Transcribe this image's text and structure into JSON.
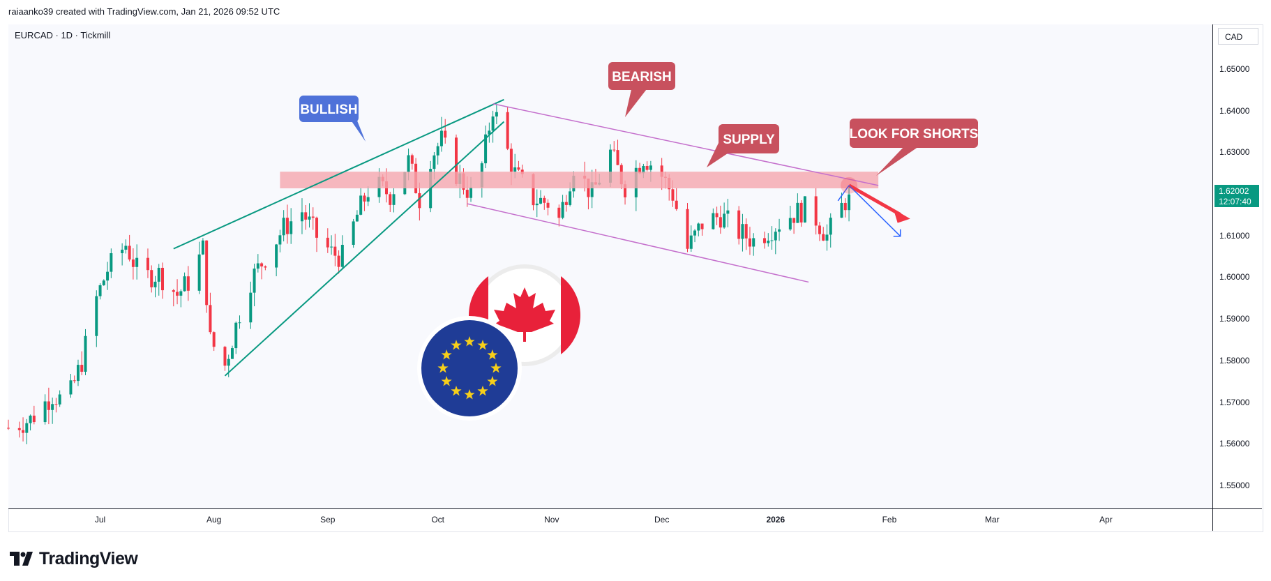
{
  "header": {
    "attribution": "raiaanko39 created with TradingView.com, Jan 21, 2026 09:52 UTC"
  },
  "symbol": {
    "title": "EURCAD · 1D · Tickmill"
  },
  "currency_button": "CAD",
  "price_badge": {
    "price": "1.62002",
    "countdown": "12:07:40",
    "color": "#089981"
  },
  "brand": {
    "name": "TradingView"
  },
  "colors": {
    "up": "#089981",
    "down": "#f23645",
    "zone": "#f5a6ae",
    "channel": "#c46fcc",
    "wedge": "#089981",
    "bearish_label": "#c8515e",
    "bullish_label": "#4f72d9",
    "arrow_red": "#f23645",
    "arrow_blue": "#2962ff"
  },
  "chart_data": {
    "type": "candlestick",
    "instrument": "EURCAD",
    "timeframe": "1D",
    "broker": "Tickmill",
    "ylim": [
      1.546,
      1.658
    ],
    "y_ticks": [
      "1.65000",
      "1.64000",
      "1.63000",
      "1.62000",
      "1.61000",
      "1.60000",
      "1.59000",
      "1.58000",
      "1.57000",
      "1.56000",
      "1.55000"
    ],
    "x_ticks": [
      {
        "label": "Jul",
        "x": "2025-07-01"
      },
      {
        "label": "Aug",
        "x": "2025-08-01"
      },
      {
        "label": "Sep",
        "x": "2025-09-01"
      },
      {
        "label": "Oct",
        "x": "2025-10-01"
      },
      {
        "label": "Nov",
        "x": "2025-11-01"
      },
      {
        "label": "Dec",
        "x": "2025-12-01"
      },
      {
        "label": "2026",
        "x": "2026-01-01",
        "bold": true
      },
      {
        "label": "Feb",
        "x": "2026-02-01"
      },
      {
        "label": "Mar",
        "x": "2026-03-01"
      },
      {
        "label": "Apr",
        "x": "2026-04-01"
      }
    ],
    "x_range": [
      "2025-06-06",
      "2026-04-30"
    ],
    "last_price": 1.62002,
    "price_path": [
      [
        "2025-06-06",
        1.564
      ],
      [
        "2025-06-12",
        1.566
      ],
      [
        "2025-06-18",
        1.572
      ],
      [
        "2025-06-22",
        1.57
      ],
      [
        "2025-06-26",
        1.58
      ],
      [
        "2025-06-30",
        1.595
      ],
      [
        "2025-07-03",
        1.602
      ],
      [
        "2025-07-08",
        1.608
      ],
      [
        "2025-07-12",
        1.6
      ],
      [
        "2025-07-17",
        1.601
      ],
      [
        "2025-07-22",
        1.596
      ],
      [
        "2025-07-26",
        1.6
      ],
      [
        "2025-07-29",
        1.607
      ],
      [
        "2025-07-31",
        1.585
      ],
      [
        "2025-08-04",
        1.579
      ],
      [
        "2025-08-10",
        1.598
      ],
      [
        "2025-08-15",
        1.605
      ],
      [
        "2025-08-20",
        1.612
      ],
      [
        "2025-08-25",
        1.616
      ],
      [
        "2025-08-29",
        1.61
      ],
      [
        "2025-09-02",
        1.606
      ],
      [
        "2025-09-05",
        1.605
      ],
      [
        "2025-09-09",
        1.615
      ],
      [
        "2025-09-13",
        1.623
      ],
      [
        "2025-09-18",
        1.62
      ],
      [
        "2025-09-23",
        1.628
      ],
      [
        "2025-09-26",
        1.619
      ],
      [
        "2025-09-29",
        1.629
      ],
      [
        "2025-10-02",
        1.633
      ],
      [
        "2025-10-06",
        1.625
      ],
      [
        "2025-10-10",
        1.62
      ],
      [
        "2025-10-13",
        1.627
      ],
      [
        "2025-10-16",
        1.641
      ],
      [
        "2025-10-19",
        1.633
      ],
      [
        "2025-10-22",
        1.625
      ],
      [
        "2025-10-27",
        1.619
      ],
      [
        "2025-10-31",
        1.618
      ],
      [
        "2025-11-03",
        1.614
      ],
      [
        "2025-11-07",
        1.627
      ],
      [
        "2025-11-12",
        1.62
      ],
      [
        "2025-11-17",
        1.63
      ],
      [
        "2025-11-21",
        1.622
      ],
      [
        "2025-11-26",
        1.629
      ],
      [
        "2025-11-30",
        1.626
      ],
      [
        "2025-12-04",
        1.62
      ],
      [
        "2025-12-08",
        1.607
      ],
      [
        "2025-12-12",
        1.613
      ],
      [
        "2025-12-17",
        1.615
      ],
      [
        "2025-12-22",
        1.611
      ],
      [
        "2025-12-26",
        1.609
      ],
      [
        "2025-12-31",
        1.612
      ],
      [
        "2026-01-05",
        1.615
      ],
      [
        "2026-01-10",
        1.617
      ],
      [
        "2026-01-15",
        1.61
      ],
      [
        "2026-01-19",
        1.617
      ],
      [
        "2026-01-21",
        1.62
      ]
    ],
    "annotations": {
      "labels": [
        "BULLISH",
        "BEARISH",
        "SUPPLY",
        "LOOK FOR SHORTS"
      ],
      "supply_zone": [
        1.6215,
        1.6255
      ]
    }
  }
}
